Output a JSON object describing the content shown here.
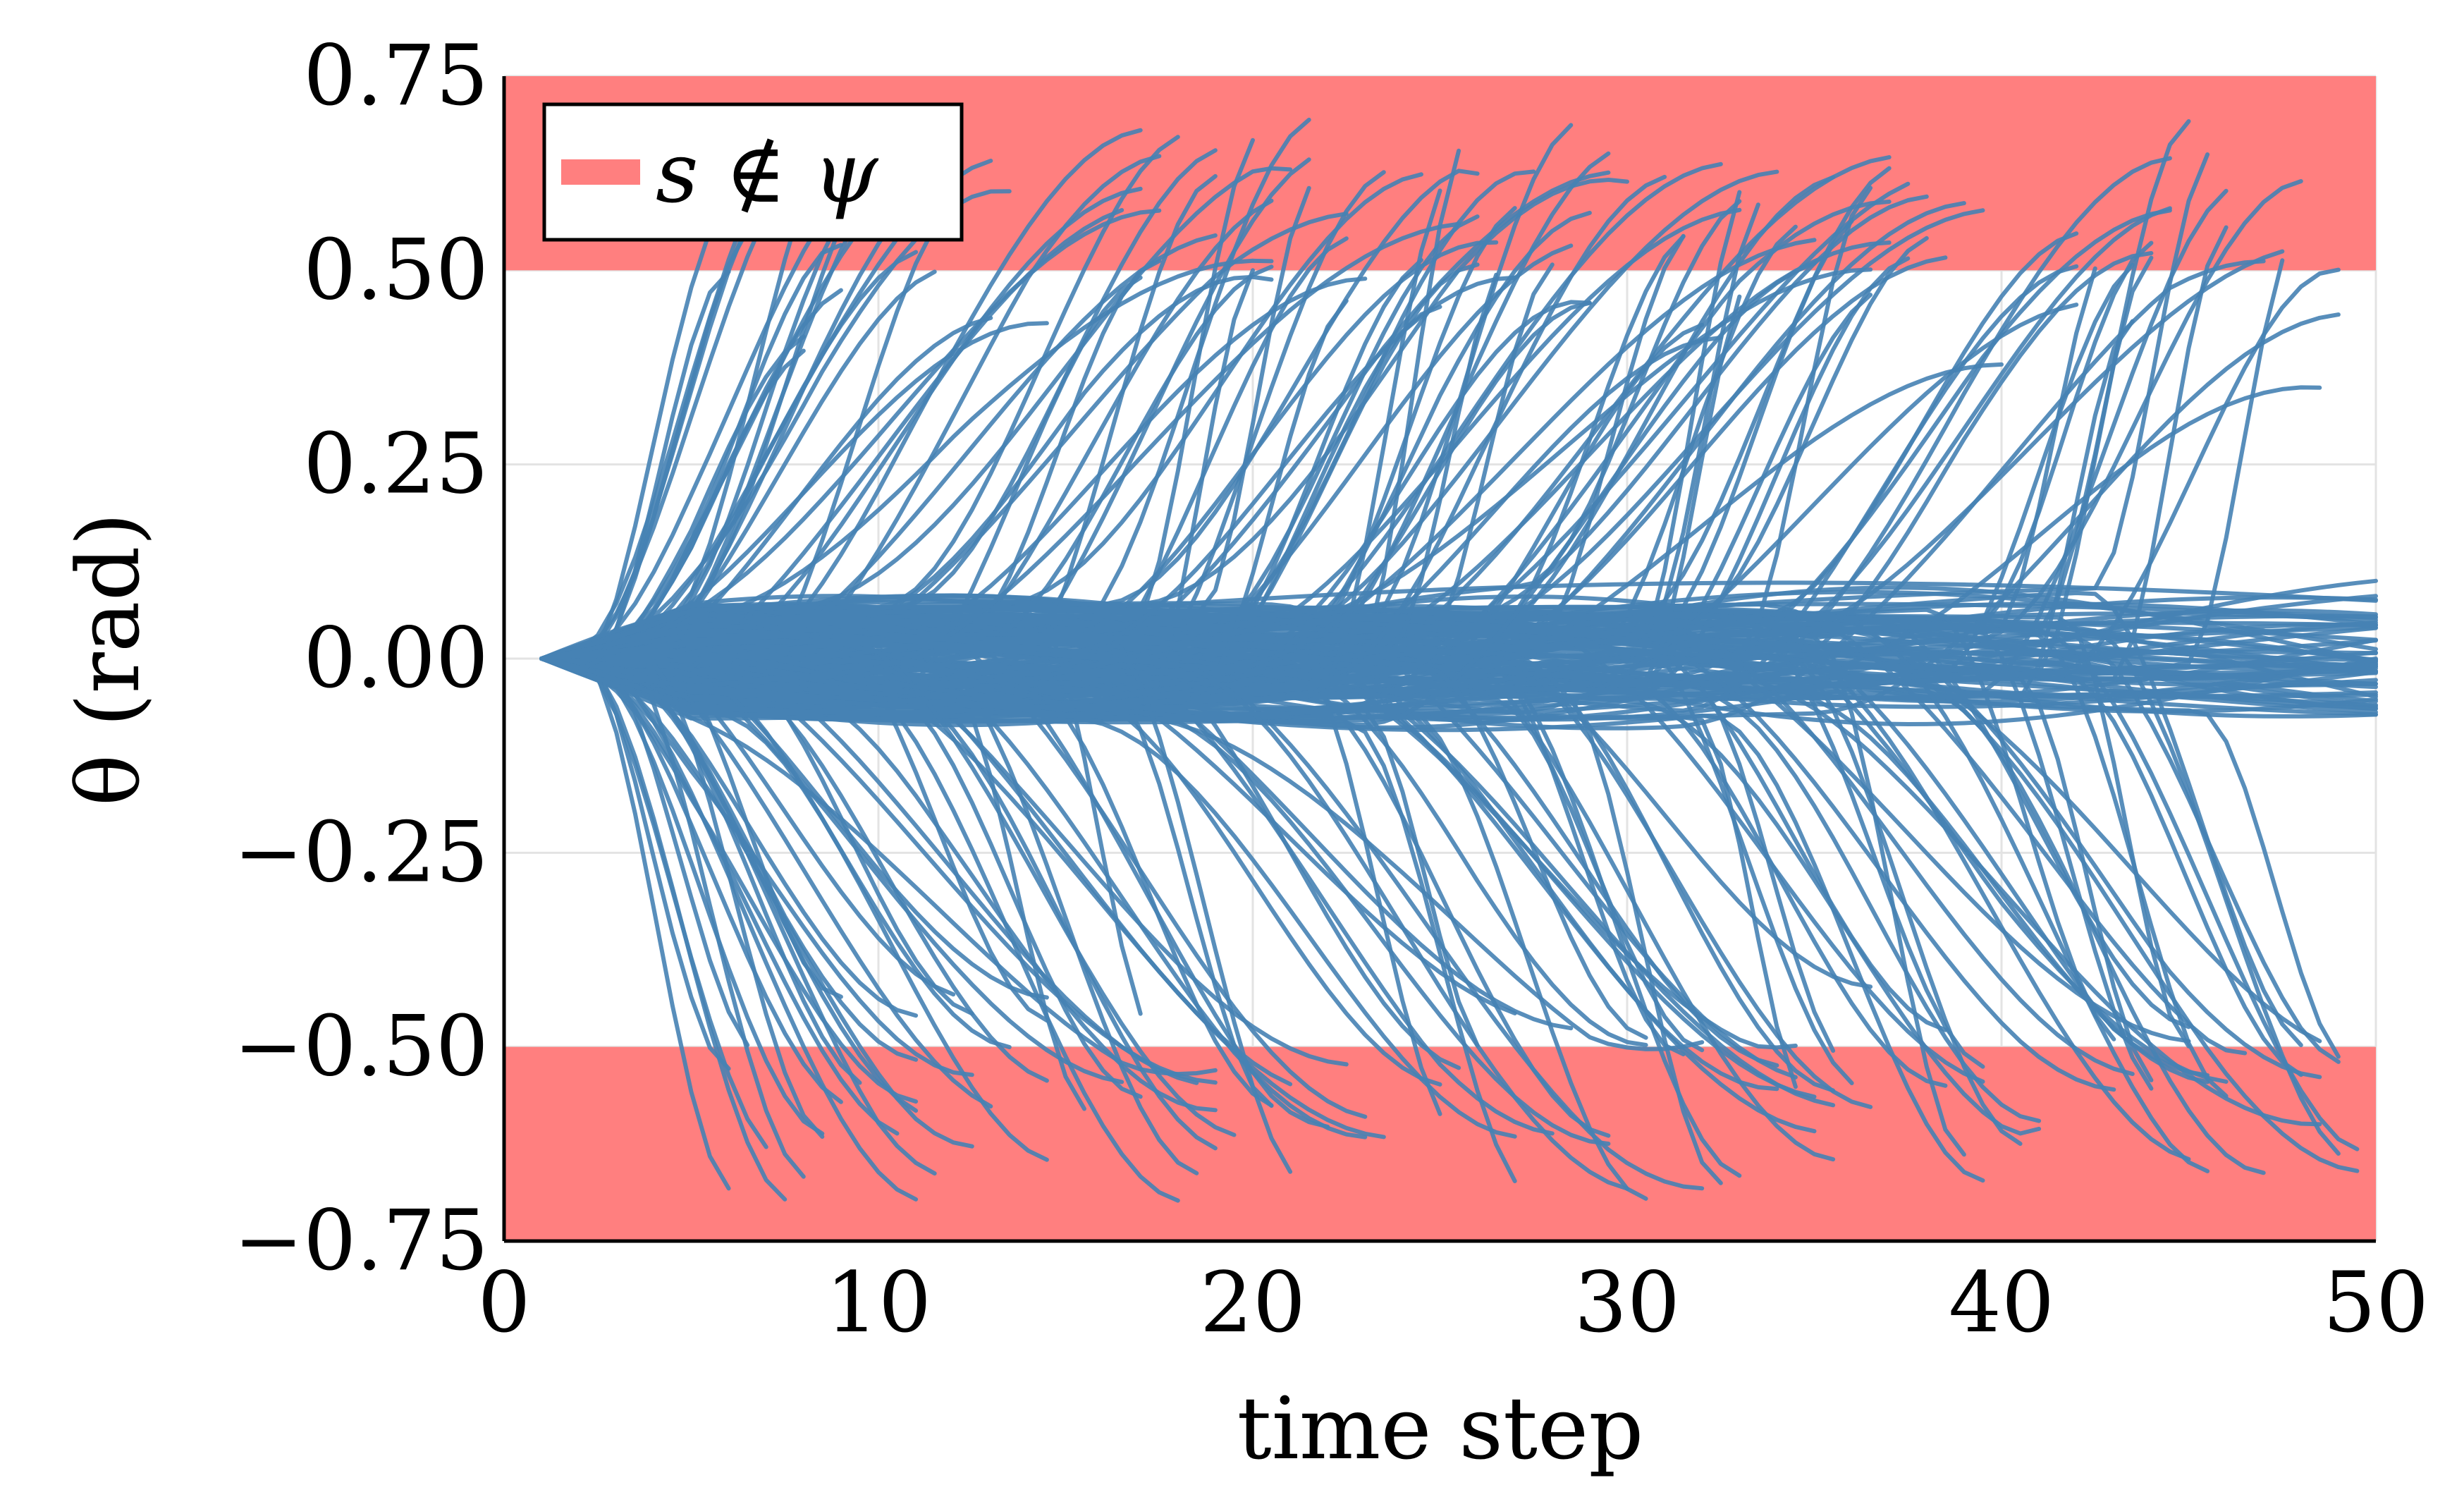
{
  "chart_data": {
    "type": "line",
    "title": "",
    "xlabel": "time step",
    "ylabel": "θ (rad)",
    "xlim": [
      0,
      50
    ],
    "ylim": [
      -0.75,
      0.75
    ],
    "x_ticks": [
      "0",
      "10",
      "20",
      "30",
      "40",
      "50"
    ],
    "y_ticks": [
      "−0.75",
      "−0.50",
      "−0.25",
      "0.00",
      "0.25",
      "0.50",
      "0.75"
    ],
    "grid": true,
    "legend": {
      "placement": "top-left",
      "entries": [
        {
          "label": "s ∉ ψ",
          "color": "#ff7f7f"
        }
      ]
    },
    "unsafe_regions": [
      {
        "label": "s ∉ ψ",
        "y_range": [
          0.5,
          0.75
        ]
      },
      {
        "label": "s ∉ ψ",
        "y_range": [
          -0.75,
          -0.5
        ]
      }
    ],
    "series_description": "≈300 rollout trajectories all starting at θ=0 at time step 1; most remain within ±0.1, while many diverge sharply to beyond ±0.5 at various time steps",
    "trajectory_count": 300,
    "start": {
      "x": 1,
      "y": 0
    },
    "colors": {
      "trajectories": "#4682b4",
      "unsafe": "#ff7f7f",
      "axis": "#000000"
    }
  }
}
